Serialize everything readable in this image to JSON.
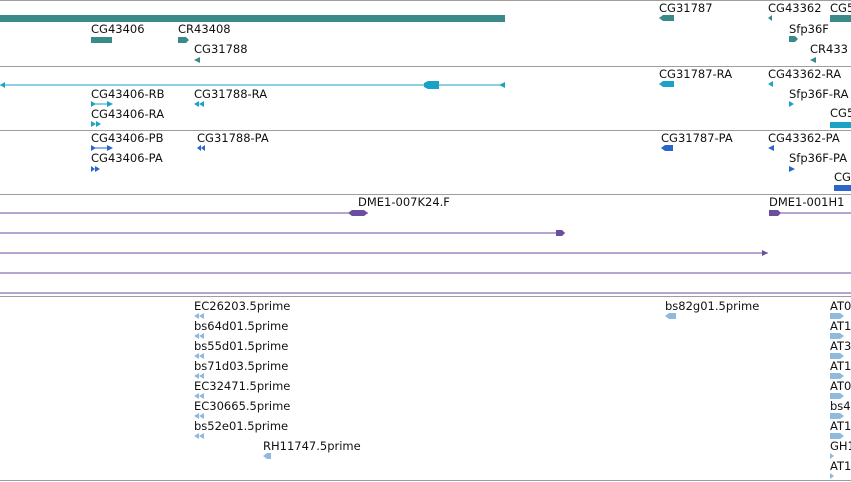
{
  "tracks": {
    "genes": {
      "labels": [
        "CG43406",
        "CR43408",
        "CG31788",
        "CG31787",
        "CG43362",
        "CG5",
        "Sfp36F",
        "CR433"
      ]
    },
    "transcripts_ra": {
      "labels": [
        "CG43406-RB",
        "CG43406-RA",
        "CG31788-RA",
        "CG31787-RA",
        "CG43362-RA",
        "Sfp36F-RA",
        "CG5"
      ]
    },
    "transcripts_pa": {
      "labels": [
        "CG43406-PB",
        "CG43406-PA",
        "CG31788-PA",
        "CG31787-PA",
        "CG43362-PA",
        "Sfp36F-PA",
        "CG"
      ]
    },
    "clones": {
      "labels": [
        "DME1-007K24.F",
        "DME1-001H1"
      ]
    },
    "ests": {
      "labels": [
        "EC26203.5prime",
        "bs64d01.5prime",
        "bs55d01.5prime",
        "bs71d03.5prime",
        "EC32471.5prime",
        "EC30665.5prime",
        "bs52e01.5prime",
        "RH11747.5prime",
        "bs82g01.5prime",
        "AT0",
        "AT1",
        "AT3",
        "AT1",
        "AT0",
        "bs4",
        "AT1",
        "GH1",
        "AT1"
      ]
    }
  },
  "colors": {
    "gene": "#3a8a8a",
    "transcript": "#1aa3c4",
    "protein": "#2a66cc",
    "clone": "#6a4ea0",
    "est": "#8fb9dd",
    "separator": "#9e9e9e"
  }
}
